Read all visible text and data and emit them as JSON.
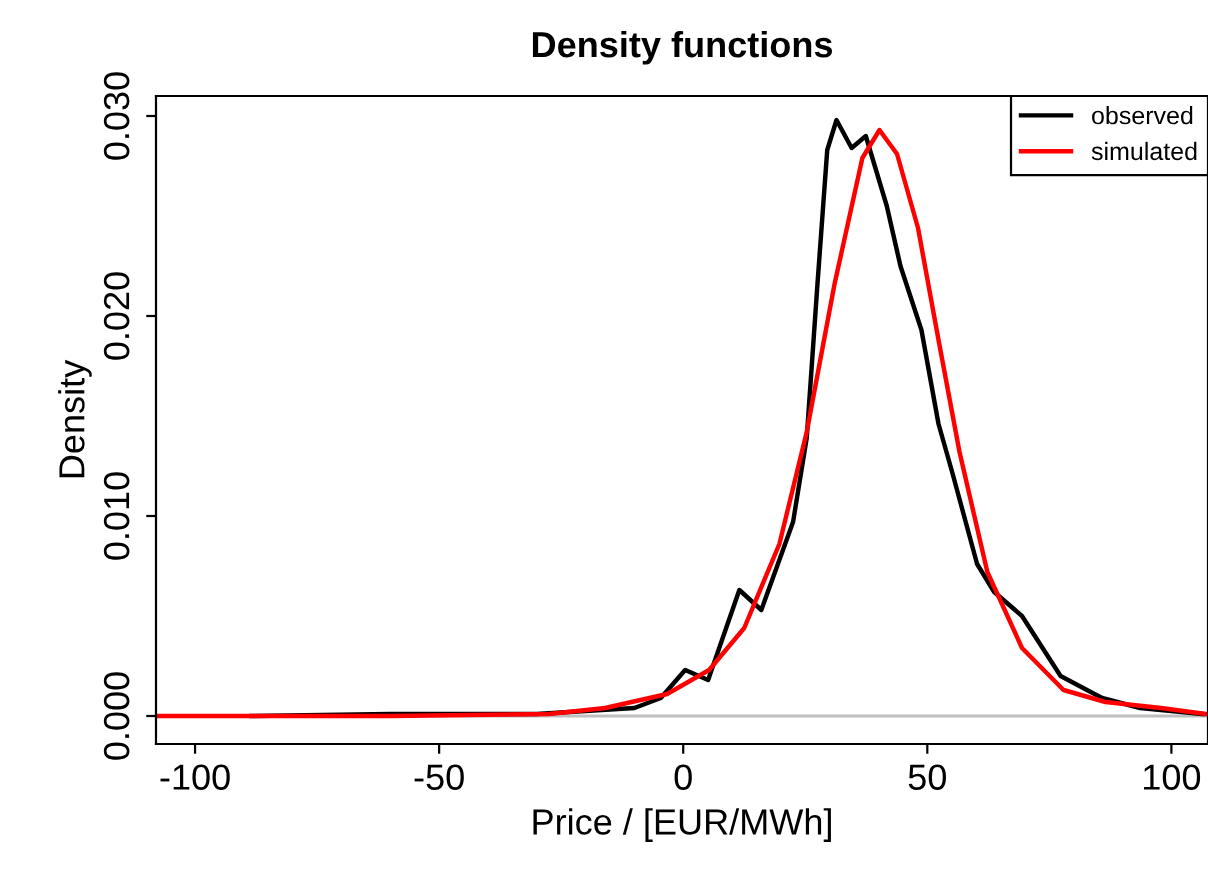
{
  "chart_data": {
    "type": "line",
    "title": "Density functions",
    "xlabel": "Price / [EUR/MWh]",
    "ylabel": "Density",
    "xlim": [
      -108,
      107.5
    ],
    "ylim": [
      -0.0014,
      0.031
    ],
    "xticks": [
      {
        "value": -100,
        "label": "-100"
      },
      {
        "value": -50,
        "label": "-50"
      },
      0,
      50,
      100
    ],
    "yticks": [
      {
        "value": 0,
        "label": "0.000"
      },
      {
        "value": 0.01,
        "label": "0.010"
      },
      {
        "value": 0.02,
        "label": "0.020"
      },
      {
        "value": 0.03,
        "label": "0.030"
      }
    ],
    "legend": "top right",
    "grid": false,
    "line_style": "solid",
    "marker": "none",
    "ref_lines": [
      {
        "axis": "y",
        "value": 0,
        "color": "#bebebe"
      }
    ],
    "series": [
      {
        "name": "observed",
        "color": "#000000",
        "x": [
          -88.5,
          -60,
          -30,
          -10,
          -4.6,
          0.4,
          5.1,
          11.5,
          16,
          22.5,
          25.3,
          27.5,
          29.5,
          31.4,
          34.5,
          37.4,
          41.7,
          44.5,
          48.8,
          52.3,
          55.2,
          60.2,
          63.7,
          69.4,
          77.3,
          85.8,
          93.6,
          106.4
        ],
        "values": [
          0,
          0.0001,
          0.0001,
          0.0004,
          0.0009,
          0.0023,
          0.0018,
          0.0063,
          0.0053,
          0.0097,
          0.0139,
          0.0216,
          0.0283,
          0.0298,
          0.0284,
          0.029,
          0.0255,
          0.0225,
          0.0193,
          0.0146,
          0.0121,
          0.0076,
          0.0062,
          0.005,
          0.002,
          0.0009,
          0.0004,
          0.0001
        ]
      },
      {
        "name": "simulated",
        "color": "#ff0000",
        "x": [
          -108,
          -60,
          -27.5,
          -16,
          -3.3,
          5.3,
          12.5,
          19.7,
          25.3,
          31,
          36.7,
          40.2,
          43.8,
          48.1,
          52.3,
          56.6,
          62.3,
          69.4,
          77.9,
          86.5,
          97.9,
          107
        ],
        "values": [
          0,
          0,
          0.0001,
          0.0004,
          0.0011,
          0.0023,
          0.0044,
          0.0086,
          0.0142,
          0.0216,
          0.0279,
          0.0293,
          0.0281,
          0.0244,
          0.0188,
          0.0132,
          0.0072,
          0.0034,
          0.0013,
          0.0007,
          0.0004,
          0.0001
        ]
      }
    ]
  }
}
